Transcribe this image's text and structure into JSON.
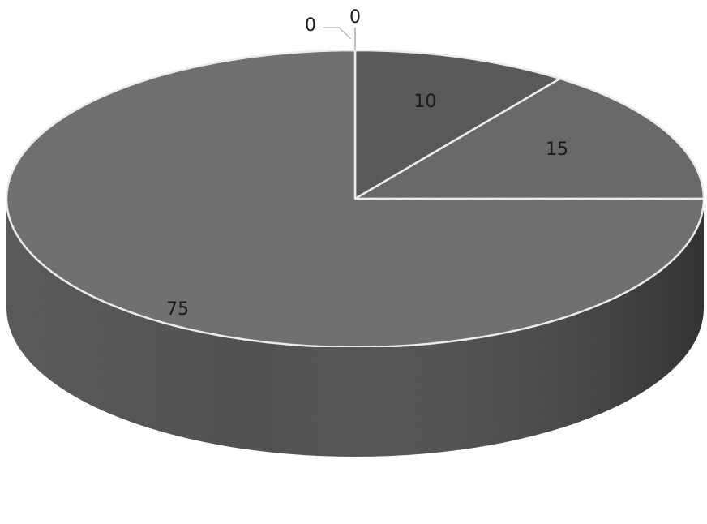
{
  "chart_data": {
    "type": "pie",
    "style": "3d",
    "title": "",
    "legend": "none",
    "slices": [
      {
        "value": 0,
        "label": "0",
        "color": "#585858"
      },
      {
        "value": 0,
        "label": "0",
        "color": "#606060"
      },
      {
        "value": 10,
        "label": "10",
        "color": "#5c5c5c"
      },
      {
        "value": 15,
        "label": "15",
        "color": "#6c6c6c"
      },
      {
        "value": 75,
        "label": "75",
        "color": "#737373"
      }
    ],
    "side_color": "#4a4a4a",
    "edge_color": "#f2f2f2"
  }
}
